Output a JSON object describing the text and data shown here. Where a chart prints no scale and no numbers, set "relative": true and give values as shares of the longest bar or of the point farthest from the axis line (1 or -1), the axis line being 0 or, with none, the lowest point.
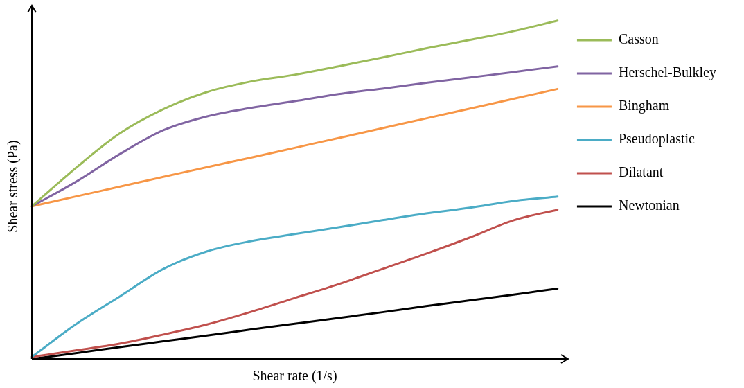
{
  "chart_data": {
    "type": "line",
    "relative": true,
    "xlabel": "Shear rate (1/s)",
    "ylabel": "Shear stress (Pa)",
    "legend": "right",
    "marker": "none",
    "line_style": "solid",
    "grid": false,
    "categories": [
      null,
      null,
      null,
      null,
      null,
      null,
      null,
      null,
      null,
      null,
      null,
      null,
      null
    ],
    "series": [
      {
        "name": "Casson",
        "color": "#9bbb59",
        "values": [
          0.451,
          0.564,
          0.666,
          0.738,
          0.789,
          0.82,
          0.84,
          0.865,
          0.891,
          0.918,
          0.943,
          0.969,
          1.0
        ]
      },
      {
        "name": "Herschel-Bulkley",
        "color": "#8064a2",
        "values": [
          0.451,
          0.523,
          0.605,
          0.676,
          0.717,
          0.742,
          0.762,
          0.783,
          0.799,
          0.816,
          0.832,
          0.848,
          0.865
        ]
      },
      {
        "name": "Bingham",
        "color": "#f79646",
        "values": [
          0.451,
          0.48,
          0.509,
          0.538,
          0.567,
          0.595,
          0.624,
          0.653,
          0.682,
          0.711,
          0.74,
          0.769,
          0.798
        ]
      },
      {
        "name": "Pseudoplastic",
        "color": "#4bacc6",
        "values": [
          0.006,
          0.102,
          0.184,
          0.266,
          0.318,
          0.348,
          0.369,
          0.389,
          0.41,
          0.43,
          0.447,
          0.467,
          0.48
        ]
      },
      {
        "name": "Dilatant",
        "color": "#c0504d",
        "values": [
          0.006,
          0.025,
          0.045,
          0.072,
          0.102,
          0.139,
          0.18,
          0.221,
          0.266,
          0.311,
          0.359,
          0.41,
          0.441
        ]
      },
      {
        "name": "Newtonian",
        "color": "#000000",
        "values": [
          0,
          0.017,
          0.035,
          0.052,
          0.069,
          0.087,
          0.104,
          0.121,
          0.138,
          0.156,
          0.173,
          0.19,
          0.208
        ]
      }
    ]
  }
}
